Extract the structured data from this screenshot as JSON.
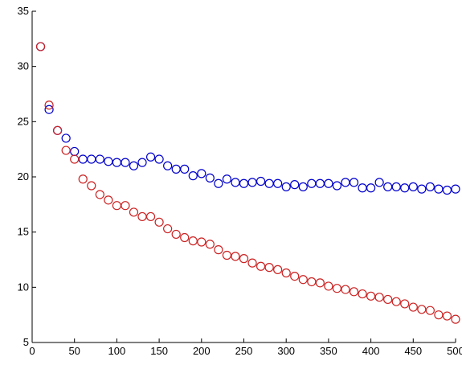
{
  "chart_data": {
    "type": "scatter",
    "xlim": [
      0,
      500
    ],
    "ylim": [
      5,
      35
    ],
    "x_ticks": [
      0,
      50,
      100,
      150,
      200,
      250,
      300,
      350,
      400,
      450,
      500
    ],
    "y_ticks": [
      5,
      10,
      15,
      20,
      25,
      30,
      35
    ],
    "grid": false,
    "marker": "open-circle",
    "x": [
      10,
      20,
      30,
      40,
      50,
      60,
      70,
      80,
      90,
      100,
      110,
      120,
      130,
      140,
      150,
      160,
      170,
      180,
      190,
      200,
      210,
      220,
      230,
      240,
      250,
      260,
      270,
      280,
      290,
      300,
      310,
      320,
      330,
      340,
      350,
      360,
      370,
      380,
      390,
      400,
      410,
      420,
      430,
      440,
      450,
      460,
      470,
      480,
      490,
      500
    ],
    "series": [
      {
        "color": "#0000cc",
        "values": [
          31.8,
          26.1,
          24.2,
          23.5,
          22.3,
          21.6,
          21.6,
          21.6,
          21.4,
          21.3,
          21.3,
          21.0,
          21.3,
          21.8,
          21.6,
          21.0,
          20.7,
          20.7,
          20.1,
          20.3,
          19.9,
          19.4,
          19.8,
          19.5,
          19.4,
          19.5,
          19.6,
          19.4,
          19.4,
          19.1,
          19.3,
          19.1,
          19.4,
          19.4,
          19.4,
          19.2,
          19.5,
          19.5,
          19.0,
          19.0,
          19.5,
          19.1,
          19.1,
          19.0,
          19.1,
          18.9,
          19.1,
          18.9,
          18.8,
          18.9
        ]
      },
      {
        "color": "#cc2222",
        "values": [
          31.8,
          26.5,
          24.2,
          22.4,
          21.6,
          19.8,
          19.2,
          18.4,
          17.9,
          17.4,
          17.4,
          16.8,
          16.4,
          16.4,
          15.9,
          15.3,
          14.8,
          14.5,
          14.2,
          14.1,
          13.9,
          13.4,
          12.9,
          12.8,
          12.6,
          12.2,
          11.9,
          11.8,
          11.6,
          11.3,
          11.0,
          10.7,
          10.5,
          10.4,
          10.1,
          9.9,
          9.8,
          9.6,
          9.4,
          9.2,
          9.1,
          8.9,
          8.7,
          8.5,
          8.2,
          8.0,
          7.9,
          7.5,
          7.4,
          7.1
        ]
      }
    ]
  }
}
